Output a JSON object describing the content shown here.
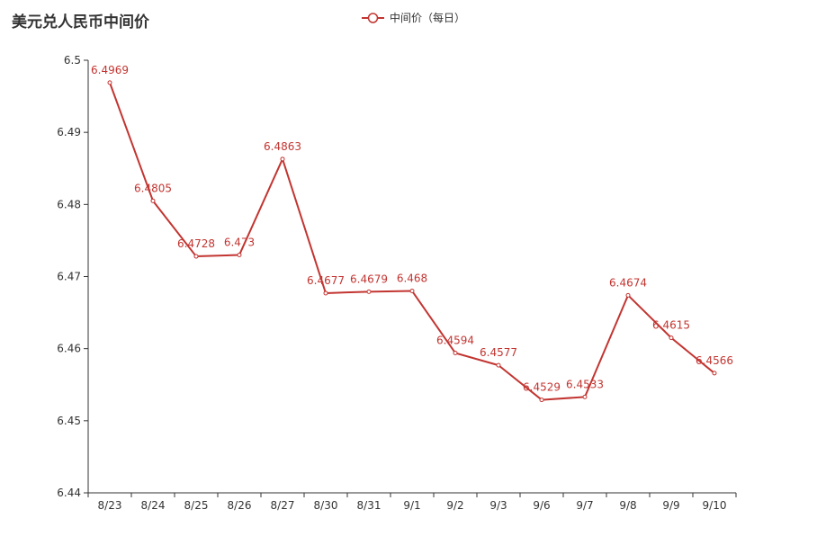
{
  "chart_data": {
    "type": "line",
    "title": "美元兑人民币中间价",
    "categories": [
      "8/23",
      "8/24",
      "8/25",
      "8/26",
      "8/27",
      "8/30",
      "8/31",
      "9/1",
      "9/2",
      "9/3",
      "9/6",
      "9/7",
      "9/8",
      "9/9",
      "9/10"
    ],
    "series": [
      {
        "name": "中间价（每日）",
        "values": [
          6.4969,
          6.4805,
          6.4728,
          6.473,
          6.4863,
          6.4677,
          6.4679,
          6.468,
          6.4594,
          6.4577,
          6.4529,
          6.4533,
          6.4674,
          6.4615,
          6.4566
        ],
        "labels": [
          "6.4969",
          "6.4805",
          "6.4728",
          "6.473",
          "6.4863",
          "6.4677",
          "6.4679",
          "6.468",
          "6.4594",
          "6.4577",
          "6.4529",
          "6.4533",
          "6.4674",
          "6.4615",
          "6.4566"
        ],
        "color": "#c23531"
      }
    ],
    "ylim": [
      6.44,
      6.5
    ],
    "yticks": [
      "6.44",
      "6.45",
      "6.46",
      "6.47",
      "6.48",
      "6.49",
      "6.5"
    ],
    "grid": false,
    "legend_position": "top-center"
  }
}
